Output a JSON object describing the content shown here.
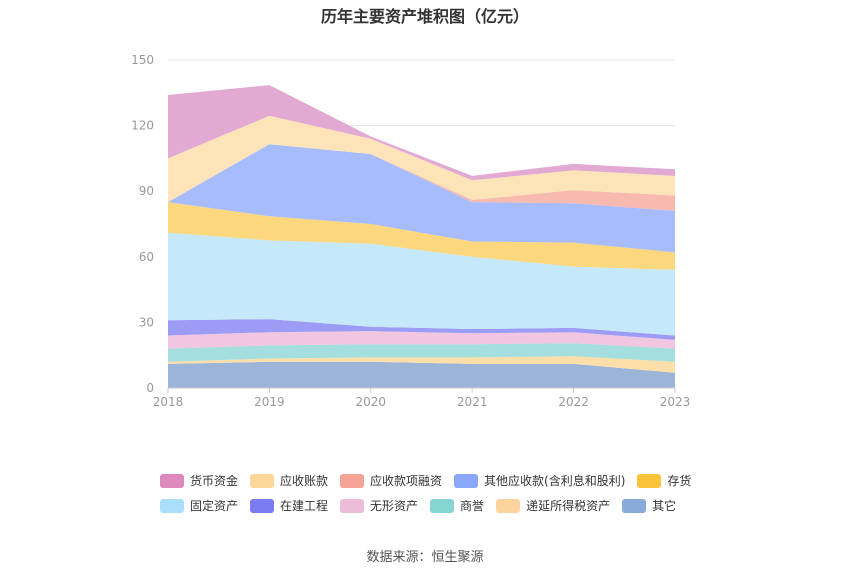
{
  "source_text": "数据来源：恒生聚源",
  "chart_data": {
    "type": "area",
    "stacked": true,
    "title": "历年主要资产堆积图（亿元）",
    "x": [
      "2018",
      "2019",
      "2020",
      "2021",
      "2022",
      "2023"
    ],
    "ylim": [
      0,
      150
    ],
    "yticks": [
      "0",
      "30",
      "60",
      "90",
      "120",
      "150"
    ],
    "grid": true,
    "legend_position": "bottom",
    "series": [
      {
        "name": "其它",
        "color": "#9bb4d8",
        "values": [
          11,
          12,
          12,
          11,
          11,
          7
        ]
      },
      {
        "name": "递延所得税资产",
        "color": "#fcdfa8",
        "values": [
          1,
          1.5,
          2,
          3,
          3.5,
          5
        ]
      },
      {
        "name": "商誉",
        "color": "#a4dede",
        "values": [
          6,
          6,
          6,
          6,
          6,
          6
        ]
      },
      {
        "name": "无形资产",
        "color": "#f0c6e0",
        "values": [
          6,
          6,
          6,
          5,
          5,
          4
        ]
      },
      {
        "name": "在建工程",
        "color": "#9c9cf7",
        "values": [
          7,
          6,
          2,
          2,
          2,
          2
        ]
      },
      {
        "name": "固定资产",
        "color": "#c5e9fb",
        "values": [
          40,
          36,
          38,
          33,
          28,
          30
        ]
      },
      {
        "name": "存货",
        "color": "#fdd77e",
        "values": [
          14,
          11,
          9,
          7,
          11,
          8
        ]
      },
      {
        "name": "其他应收款(含利息和股利)",
        "color": "#a7bcfc",
        "values": [
          0,
          33,
          32,
          18,
          18,
          19
        ]
      },
      {
        "name": "应收款项融资",
        "color": "#f8b9ae",
        "values": [
          0,
          0,
          0,
          1,
          6,
          7
        ]
      },
      {
        "name": "应收账款",
        "color": "#fde4b8",
        "values": [
          20,
          13,
          7,
          9,
          9,
          9
        ]
      },
      {
        "name": "货币资金",
        "color": "#e2a9d3",
        "values": [
          29,
          14,
          1,
          2,
          3,
          3
        ]
      }
    ],
    "legend": [
      {
        "label": "货币资金",
        "color": "#e089c0"
      },
      {
        "label": "应收账款",
        "color": "#fdd79a"
      },
      {
        "label": "应收款项融资",
        "color": "#f6a294"
      },
      {
        "label": "其他应收款(含利息和股利)",
        "color": "#8ca6fb"
      },
      {
        "label": "存货",
        "color": "#fbc33a"
      },
      {
        "label": "固定资产",
        "color": "#abdefa"
      },
      {
        "label": "在建工程",
        "color": "#7b7bf2"
      },
      {
        "label": "无形资产",
        "color": "#edbcd9"
      },
      {
        "label": "商誉",
        "color": "#85d5d5"
      },
      {
        "label": "递延所得税资产",
        "color": "#fcd39a"
      },
      {
        "label": "其它",
        "color": "#8aaadb"
      }
    ]
  }
}
